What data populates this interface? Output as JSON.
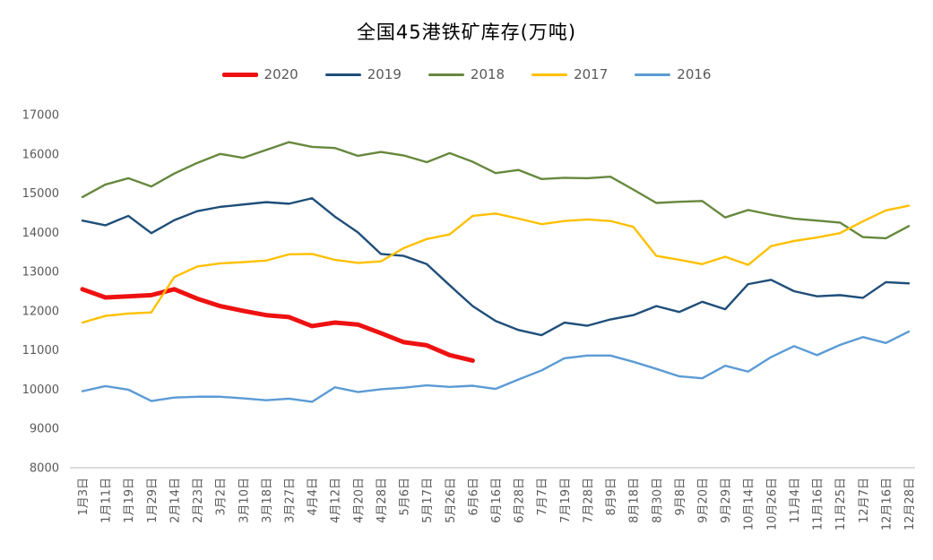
{
  "chart_data": {
    "type": "line",
    "title": "全国45港铁矿库存(万吨)",
    "ylabel": "",
    "xlabel": "",
    "grid": false,
    "legend_position": "top",
    "axis_color": "#c8c8c8",
    "label_color": "#595959",
    "ylim": [
      8000,
      17000
    ],
    "y_axis": {
      "min": 8000,
      "max": 17000,
      "step": 1000,
      "tick_labels": [
        "8000",
        "9000",
        "10000",
        "11000",
        "12000",
        "13000",
        "14000",
        "15000",
        "16000",
        "17000"
      ]
    },
    "categories": [
      "1月3日",
      "1月11日",
      "1月19日",
      "1月29日",
      "2月14日",
      "2月23日",
      "3月2日",
      "3月10日",
      "3月18日",
      "3月27日",
      "4月4日",
      "4月12日",
      "4月20日",
      "4月28日",
      "5月6日",
      "5月17日",
      "5月26日",
      "6月6日",
      "6月16日",
      "6月28日",
      "7月7日",
      "7月19日",
      "7月28日",
      "8月9日",
      "8月18日",
      "8月30日",
      "9月8日",
      "9月20日",
      "9月29日",
      "10月14日",
      "10月26日",
      "11月4日",
      "11月16日",
      "11月25日",
      "12月7日",
      "12月16日",
      "12月28日"
    ],
    "series": [
      {
        "name": "2020",
        "color": "#ee1111",
        "line_width": 5,
        "values": [
          12550,
          12340,
          12370,
          12400,
          12550,
          12310,
          12120,
          12000,
          11890,
          11840,
          11610,
          11700,
          11650,
          11430,
          11200,
          11120,
          10870,
          10730
        ]
      },
      {
        "name": "2019",
        "color": "#1f4e79",
        "line_width": 2.4,
        "values": [
          14300,
          14180,
          14420,
          13980,
          14310,
          14540,
          14650,
          14710,
          14770,
          14730,
          14870,
          14400,
          14000,
          13450,
          13400,
          13190,
          12650,
          12120,
          11740,
          11510,
          11380,
          11700,
          11620,
          11780,
          11890,
          12120,
          11970,
          12230,
          12040,
          12680,
          12790,
          12500,
          12370,
          12400,
          12330,
          12730,
          12700
        ]
      },
      {
        "name": "2018",
        "color": "#66883d",
        "line_width": 2.4,
        "values": [
          14900,
          15220,
          15380,
          15170,
          15500,
          15770,
          16000,
          15900,
          16100,
          16300,
          16180,
          16150,
          15950,
          16050,
          15960,
          15790,
          16020,
          15800,
          15510,
          15590,
          15360,
          15390,
          15380,
          15420,
          15090,
          14750,
          14780,
          14800,
          14380,
          14570,
          14450,
          14350,
          14300,
          14250,
          13880,
          13850,
          14160
        ]
      },
      {
        "name": "2017",
        "color": "#ffc000",
        "line_width": 2.4,
        "values": [
          11700,
          11870,
          11930,
          11960,
          12860,
          13130,
          13210,
          13240,
          13280,
          13440,
          13450,
          13300,
          13220,
          13260,
          13600,
          13830,
          13950,
          14420,
          14480,
          14350,
          14210,
          14290,
          14330,
          14290,
          14140,
          13400,
          13300,
          13190,
          13380,
          13170,
          13650,
          13780,
          13870,
          13980,
          14280,
          14560,
          14680
        ]
      },
      {
        "name": "2016",
        "color": "#5b9bd5",
        "line_width": 2.4,
        "values": [
          9950,
          10080,
          9990,
          9700,
          9790,
          9810,
          9810,
          9770,
          9720,
          9760,
          9680,
          10050,
          9930,
          10000,
          10040,
          10100,
          10060,
          10090,
          10010,
          10250,
          10480,
          10790,
          10860,
          10860,
          10700,
          10520,
          10330,
          10280,
          10600,
          10450,
          10820,
          11100,
          10870,
          11130,
          11330,
          11180,
          11470
        ]
      }
    ]
  }
}
